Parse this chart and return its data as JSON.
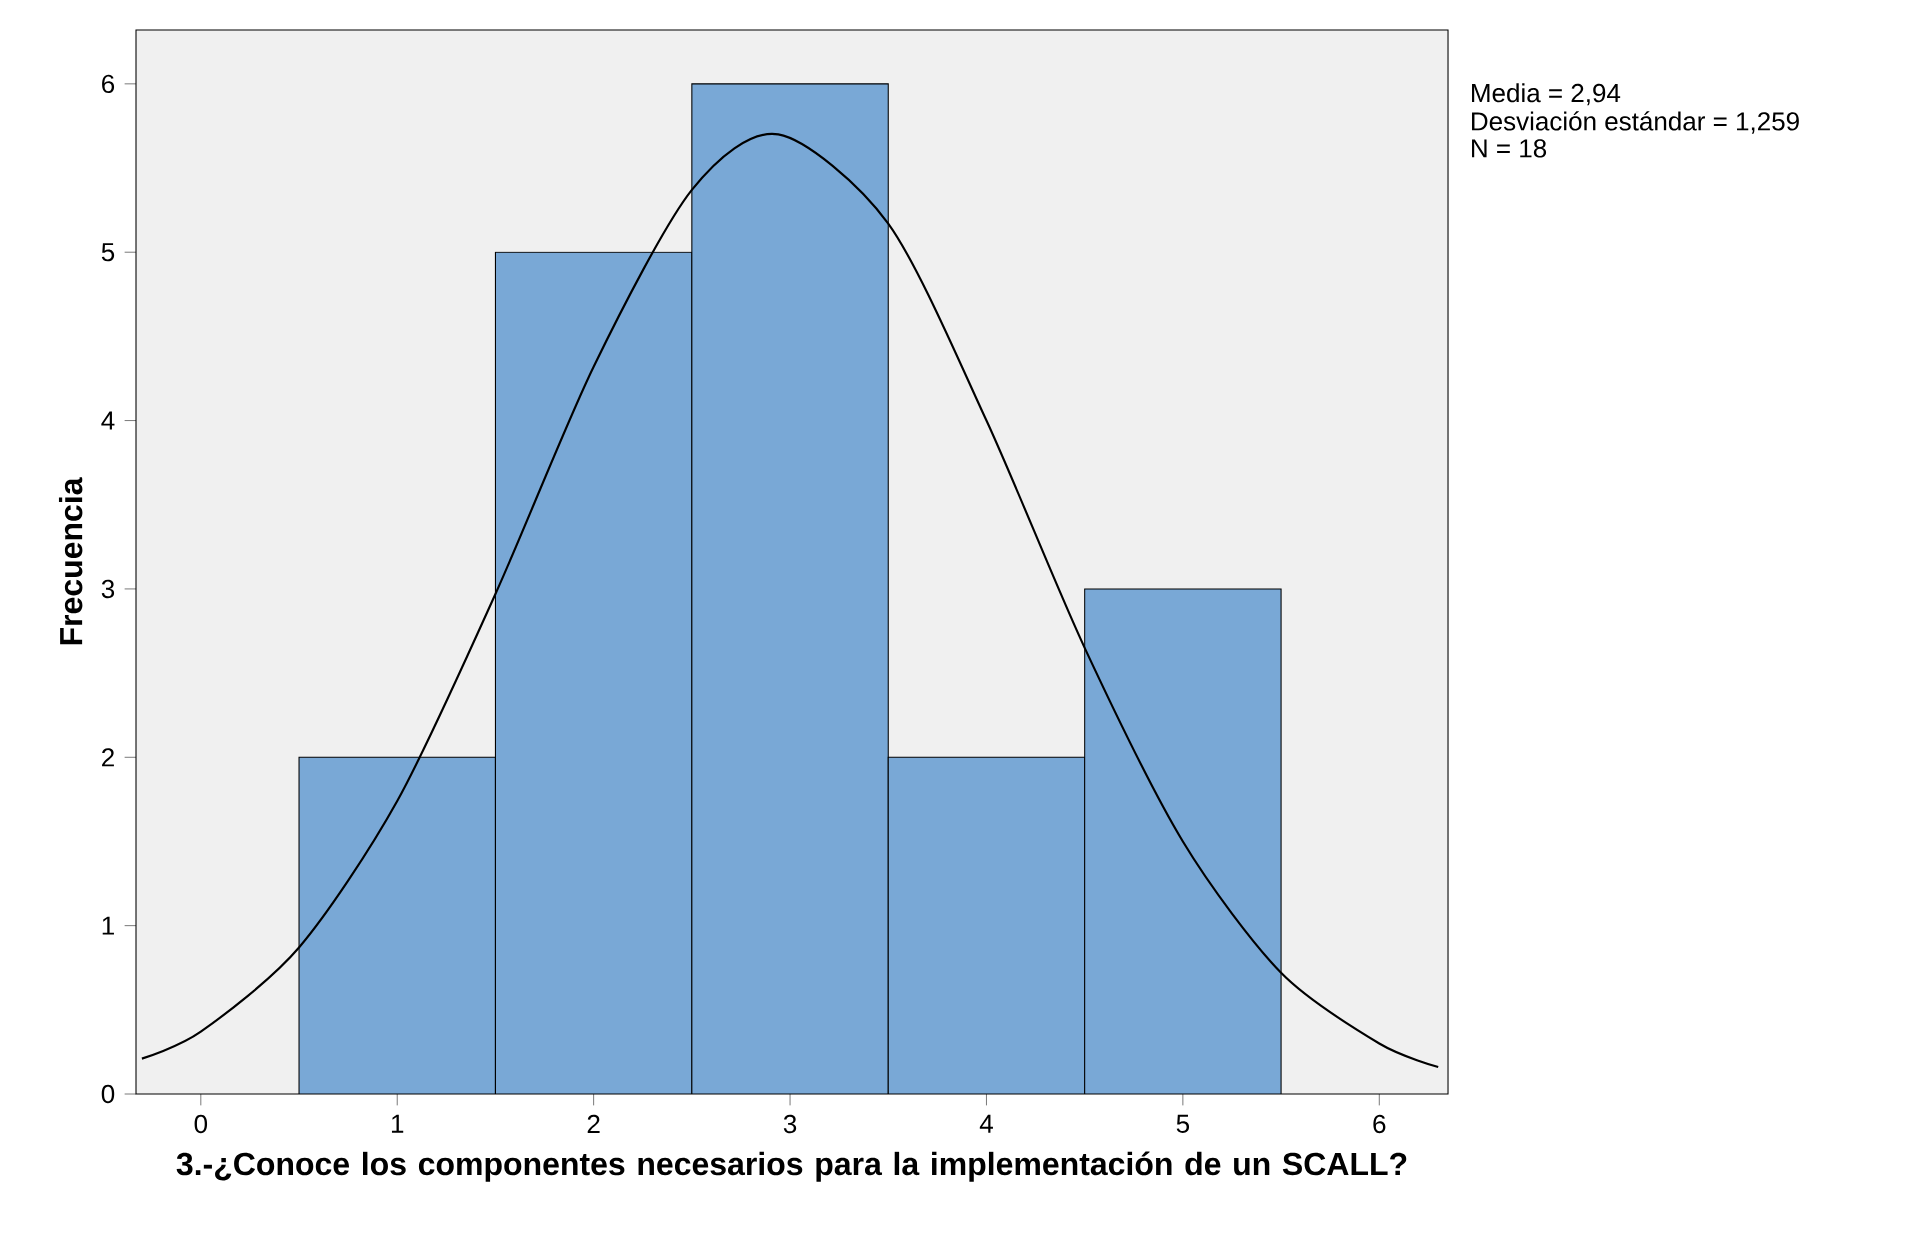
{
  "chart_data": {
    "type": "histogram",
    "xlabel": "3.-¿Conoce los componentes necesarios para la implementación de un SCALL?",
    "ylabel": "Frecuencia",
    "bins": [
      0.5,
      1.5,
      2.5,
      3.5,
      4.5,
      5.5
    ],
    "values": [
      2,
      5,
      6,
      2,
      3
    ],
    "color": "#79a8d6",
    "series": [
      {
        "type": "line",
        "color": "#000000",
        "x": [
          -0.3,
          0,
          0.5,
          1,
          1.5,
          2,
          2.5,
          2.94,
          3.5,
          4,
          4.5,
          5,
          5.5,
          6,
          6.3
        ],
        "values": [
          0.21,
          0.37,
          0.87,
          1.74,
          2.97,
          4.32,
          5.37,
          5.7,
          5.17,
          4.0,
          2.65,
          1.5,
          0.72,
          0.3,
          0.16
        ]
      }
    ],
    "xlim": [
      -0.33,
      6.35
    ],
    "ylim": [
      0,
      6.32
    ],
    "xticks": [
      0,
      1,
      2,
      3,
      4,
      5,
      6
    ],
    "yticks": [
      0,
      1,
      2,
      3,
      4,
      5,
      6
    ],
    "annotations": [
      "Media = 2,94",
      "Desviación estándar = 1,259",
      "N = 18"
    ]
  }
}
